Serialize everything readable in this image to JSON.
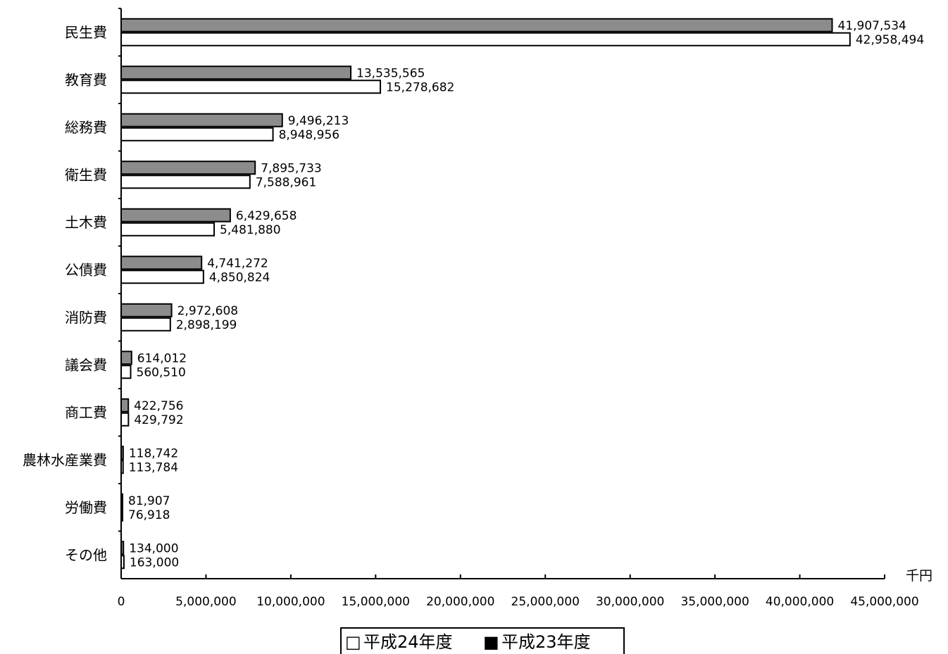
{
  "chart_data": {
    "type": "bar",
    "orientation": "horizontal",
    "categories": [
      "民生費",
      "教育費",
      "総務費",
      "衛生費",
      "土木費",
      "公債費",
      "消防費",
      "議会費",
      "商工費",
      "農林水産業費",
      "労働費",
      "その他"
    ],
    "series": [
      {
        "name": "平成23年度",
        "color": "#8c8c8c",
        "values": [
          41907534,
          13535565,
          9496213,
          7895733,
          6429658,
          4741272,
          2972608,
          614012,
          422756,
          118742,
          81907,
          134000
        ],
        "labels": [
          "41,907,534",
          "13,535,565",
          "9,496,213",
          "7,895,733",
          "6,429,658",
          "4,741,272",
          "2,972,608",
          "614,012",
          "422,756",
          "118,742",
          "81,907",
          "134,000"
        ]
      },
      {
        "name": "平成24年度",
        "color": "#ffffff",
        "values": [
          42958494,
          15278682,
          8948956,
          7588961,
          5481880,
          4850824,
          2898199,
          560510,
          429792,
          113784,
          76918,
          163000
        ],
        "labels": [
          "42,958,494",
          "15,278,682",
          "8,948,956",
          "7,588,961",
          "5,481,880",
          "4,850,824",
          "2,898,199",
          "560,510",
          "429,792",
          "113,784",
          "76,918",
          "163,000"
        ]
      }
    ],
    "x_ticks": [
      "0",
      "5,000,000",
      "10,000,000",
      "15,000,000",
      "20,000,000",
      "25,000,000",
      "30,000,000",
      "35,000,000",
      "40,000,000",
      "45,000,000"
    ],
    "xlim": [
      0,
      45000000
    ],
    "unit": "千円",
    "legend": {
      "placement": "bottom-center",
      "items": [
        {
          "marker": "□",
          "label": "平成24年度"
        },
        {
          "marker": "■",
          "label": "平成23年度"
        }
      ]
    }
  }
}
